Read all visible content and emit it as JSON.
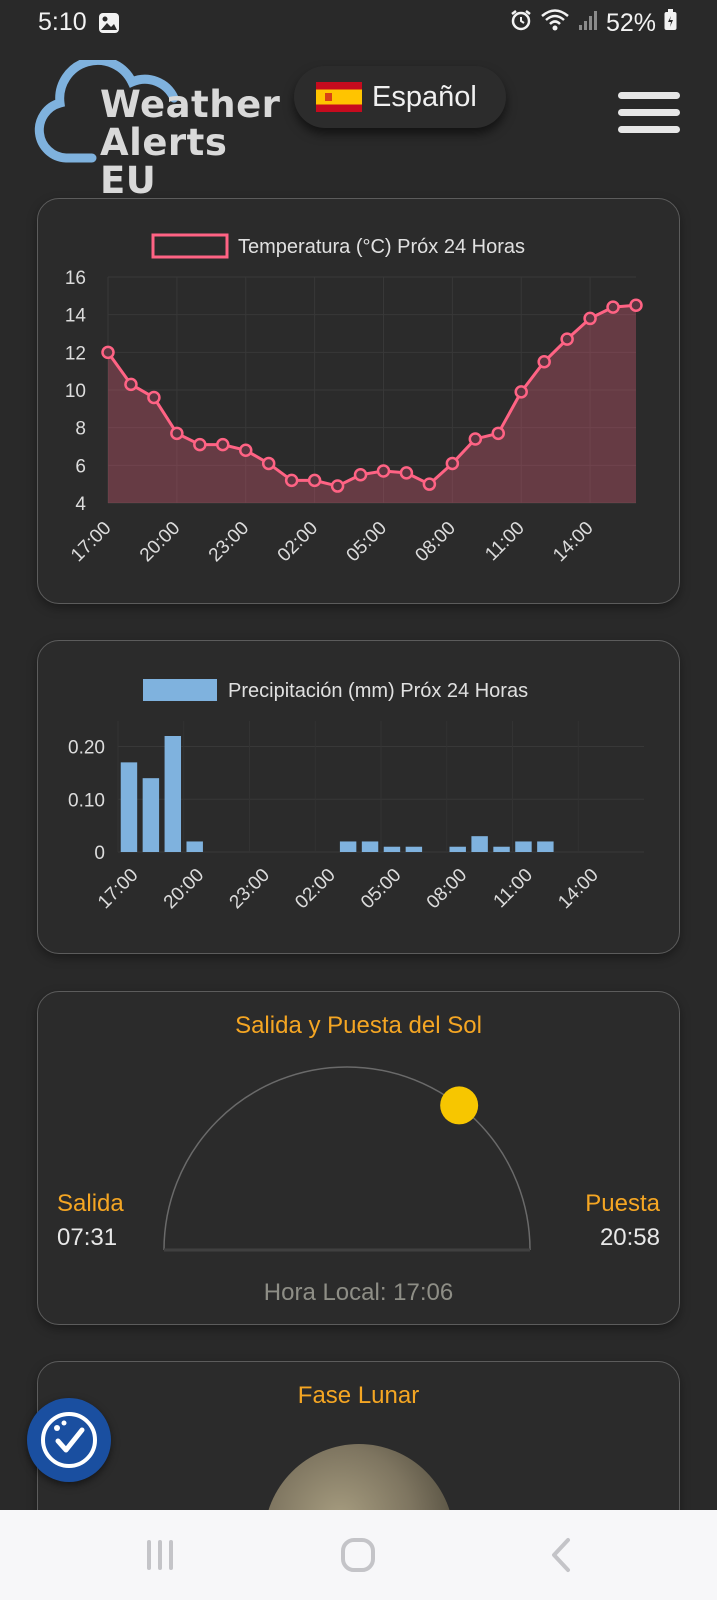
{
  "status_bar": {
    "time": "5:10",
    "battery": "52%"
  },
  "header": {
    "logo_line1": "Weather",
    "logo_line2": "Alerts EU",
    "language": "Español"
  },
  "temp_chart": {
    "legend": "Temperatura (°C) Próx 24 Horas",
    "chart_data": {
      "type": "line",
      "title": "Temperatura (°C) Próx 24 Horas",
      "x_ticks": [
        "17:00",
        "20:00",
        "23:00",
        "02:00",
        "05:00",
        "08:00",
        "11:00",
        "14:00"
      ],
      "y_ticks": [
        "16",
        "14",
        "12",
        "10",
        "8",
        "6",
        "4"
      ],
      "ylim": [
        4,
        16
      ],
      "values": [
        12.0,
        10.3,
        9.6,
        7.7,
        7.1,
        7.1,
        6.8,
        6.1,
        5.2,
        5.2,
        4.9,
        5.5,
        5.7,
        5.6,
        5.0,
        6.1,
        7.4,
        7.7,
        9.9,
        11.5,
        12.7,
        13.8,
        14.4,
        14.5
      ],
      "color": "#ff6384"
    }
  },
  "precip_chart": {
    "legend": "Precipitación (mm) Próx 24 Horas",
    "chart_data": {
      "type": "bar",
      "title": "Precipitación (mm) Próx 24 Horas",
      "x_ticks": [
        "17:00",
        "20:00",
        "23:00",
        "02:00",
        "05:00",
        "08:00",
        "11:00",
        "14:00"
      ],
      "y_ticks": [
        "0.20",
        "0.10",
        "0"
      ],
      "ylim": [
        0,
        0.22
      ],
      "values": [
        0.17,
        0.14,
        0.22,
        0.02,
        0,
        0,
        0,
        0,
        0,
        0,
        0.02,
        0.02,
        0.01,
        0.01,
        0,
        0.01,
        0.03,
        0.01,
        0.02,
        0.02,
        0,
        0,
        0,
        0
      ],
      "color": "#7fb2de"
    }
  },
  "sun": {
    "title": "Salida y Puesta del Sol",
    "sunrise_label": "Salida",
    "sunrise_time": "07:31",
    "sunset_label": "Puesta",
    "sunset_time": "20:58",
    "local_time": "Hora Local: 17:06",
    "day_progress": 0.71
  },
  "moon": {
    "title": "Fase Lunar"
  },
  "colors": {
    "accent": "#f5a623",
    "background": "#292929",
    "card_border": "#5c5c5c"
  }
}
